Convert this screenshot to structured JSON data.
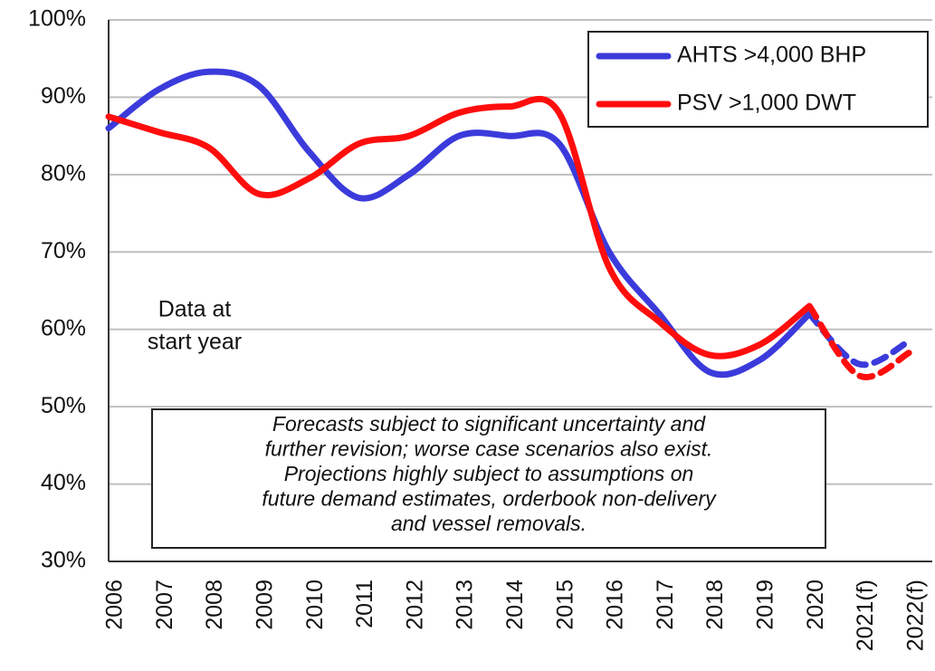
{
  "chart_data": {
    "type": "line",
    "categories": [
      "2006",
      "2007",
      "2008",
      "2009",
      "2010",
      "2011",
      "2012",
      "2013",
      "2014",
      "2015",
      "2016",
      "2017",
      "2018",
      "2019",
      "2020",
      "2021(f)",
      "2022(f)"
    ],
    "series": [
      {
        "name": "AHTS >4,000 BHP",
        "color": "#3b3bdc",
        "values": [
          86,
          91,
          93.3,
          91.5,
          83,
          77,
          80,
          85,
          85,
          84,
          70,
          62,
          54.5,
          56,
          62,
          55.5,
          58.5
        ]
      },
      {
        "name": "PSV >1,000 DWT",
        "color": "#ff0d0d",
        "values": [
          87.5,
          85.5,
          83.5,
          77.5,
          79.5,
          84,
          85,
          88,
          88.8,
          88,
          68,
          61,
          56.7,
          58,
          63,
          54,
          57
        ]
      }
    ],
    "dashed_from_index": 14,
    "ylim": [
      30,
      100
    ],
    "yticks": [
      {
        "value": 30,
        "label": "30%"
      },
      {
        "value": 40,
        "label": "40%"
      },
      {
        "value": 50,
        "label": "50%"
      },
      {
        "value": 60,
        "label": "60%"
      },
      {
        "value": 70,
        "label": "70%"
      },
      {
        "value": 80,
        "label": "80%"
      },
      {
        "value": 90,
        "label": "90%"
      },
      {
        "value": 100,
        "label": "100%"
      }
    ],
    "grid": true,
    "legend": "upper right",
    "annotations": [
      [
        "Data at",
        "start year"
      ],
      [
        "Forecasts subject to significant uncertainty and",
        "further revision; worse case scenarios also exist.",
        "Projections highly subject to assumptions on",
        "future demand estimates, orderbook non-delivery",
        "and vessel removals."
      ]
    ]
  }
}
